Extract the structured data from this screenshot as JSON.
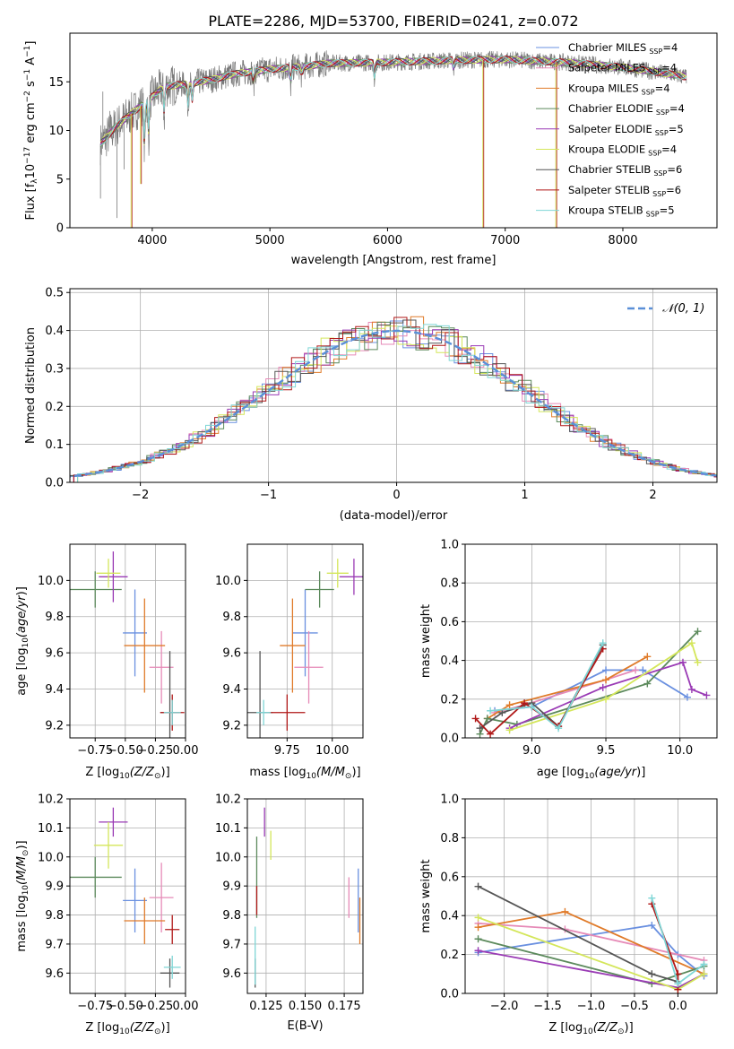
{
  "colors": {
    "Chabrier MILES": "#6a90e0",
    "Salpeter MILES": "#e68ab7",
    "Kroupa MILES": "#e07b2a",
    "Chabrier ELODIE": "#5c8a5c",
    "Salpeter ELODIE": "#9a3bb5",
    "Kroupa ELODIE": "#d4e65a",
    "Chabrier STELIB": "#555555",
    "Salpeter STELIB": "#b01818",
    "Kroupa STELIB": "#7fd6d6",
    "gauss": "#5a8fd8"
  },
  "chart_data": [
    {
      "id": "spectrum",
      "type": "line",
      "title": "PLATE=2286, MJD=53700, FIBERID=0241, z=0.072",
      "xlabel": "wavelength [Angstrom, rest frame]",
      "ylabel_main": "Flux [f",
      "ylabel_sub": "λ",
      "ylabel_rest": "10",
      "ylabel_exp": "−17",
      "ylabel_tail": " erg cm",
      "ylabel_exp2": "−2",
      "ylabel_tail2": " s",
      "ylabel_exp3": "−1",
      "ylabel_tail3": " A",
      "ylabel_exp4": "−1",
      "ylabel_end": "]",
      "xlim": [
        3300,
        8800
      ],
      "ylim": [
        0,
        20
      ],
      "xticks": [
        "4000",
        "5000",
        "6000",
        "7000",
        "8000"
      ],
      "yticks": [
        "0",
        "5",
        "10",
        "15"
      ],
      "legend": [
        {
          "name": "Chabrier MILES",
          "n": "4"
        },
        {
          "name": "Salpeter MILES",
          "n": "4"
        },
        {
          "name": "Kroupa MILES",
          "n": "4"
        },
        {
          "name": "Chabrier ELODIE",
          "n": "4"
        },
        {
          "name": "Salpeter ELODIE",
          "n": "5"
        },
        {
          "name": "Kroupa ELODIE",
          "n": "4"
        },
        {
          "name": "Chabrier STELIB",
          "n": "6"
        },
        {
          "name": "Salpeter STELIB",
          "n": "6"
        },
        {
          "name": "Kroupa STELIB",
          "n": "5"
        }
      ],
      "legend_sub": "SSP",
      "continuum": [
        [
          3550,
          8.5
        ],
        [
          3700,
          10.5
        ],
        [
          3800,
          11.5
        ],
        [
          3900,
          12.5
        ],
        [
          4000,
          13.5
        ],
        [
          4100,
          14.5
        ],
        [
          4300,
          14.8
        ],
        [
          4500,
          15.2
        ],
        [
          4700,
          15.8
        ],
        [
          5000,
          16.3
        ],
        [
          5300,
          16.6
        ],
        [
          5500,
          16.9
        ],
        [
          6000,
          17.0
        ],
        [
          6500,
          17.2
        ],
        [
          7000,
          17.3
        ],
        [
          7500,
          17.0
        ],
        [
          8000,
          16.5
        ],
        [
          8400,
          15.8
        ],
        [
          8550,
          15.5
        ]
      ],
      "absorptions": [
        [
          3934,
          5.0
        ],
        [
          3969,
          4.0
        ],
        [
          4102,
          3.0
        ],
        [
          4304,
          2.5
        ],
        [
          4340,
          2.0
        ],
        [
          4861,
          1.5
        ],
        [
          5175,
          2.0
        ],
        [
          5270,
          1.0
        ],
        [
          5890,
          1.8
        ],
        [
          6563,
          1.0
        ]
      ],
      "dropouts": [
        [
          3820,
          0
        ],
        [
          3900,
          4.5
        ],
        [
          6810,
          0
        ],
        [
          7430,
          0
        ]
      ]
    },
    {
      "id": "residuals",
      "type": "step",
      "xlabel": "(data-model)/error",
      "ylabel": "Normed distribution",
      "xlim": [
        -2.55,
        2.5
      ],
      "ylim": [
        0,
        0.51
      ],
      "xticks": [
        "−2",
        "−1",
        "0",
        "1",
        "2"
      ],
      "yticks": [
        "0.0",
        "0.1",
        "0.2",
        "0.3",
        "0.4",
        "0.5"
      ],
      "bin_width": 0.1,
      "gauss_label": "𝒩(0, 1)"
    },
    {
      "id": "age_vs_Z",
      "type": "errorbar",
      "xlabel": "Z [log",
      "xlabel_sub": "10",
      "xlabel_rest": "(Z/Z",
      "xlabel_sun": "⊙",
      "xlabel_end": ")]",
      "ylabel": "age  [log10(age/yr)]",
      "xlim": [
        -0.96,
        0.0
      ],
      "ylim": [
        9.13,
        10.2
      ],
      "xticks": [
        "−0.75",
        "−0.50",
        "−0.25",
        "0.00"
      ],
      "yticks": [
        "9.2",
        "9.4",
        "9.6",
        "9.8",
        "10.0"
      ],
      "points": [
        {
          "s": "Chabrier MILES",
          "x": -0.42,
          "y": 9.71,
          "xe": 0.1,
          "ye": 0.24
        },
        {
          "s": "Salpeter MILES",
          "x": -0.2,
          "y": 9.52,
          "xe": 0.1,
          "ye": 0.2
        },
        {
          "s": "Kroupa MILES",
          "x": -0.34,
          "y": 9.64,
          "xe": 0.17,
          "ye": 0.26
        },
        {
          "s": "Chabrier ELODIE",
          "x": -0.75,
          "y": 9.95,
          "xe": 0.22,
          "ye": 0.1
        },
        {
          "s": "Salpeter ELODIE",
          "x": -0.6,
          "y": 10.02,
          "xe": 0.12,
          "ye": 0.14
        },
        {
          "s": "Kroupa ELODIE",
          "x": -0.64,
          "y": 10.04,
          "xe": 0.1,
          "ye": 0.08
        },
        {
          "s": "Chabrier STELIB",
          "x": -0.13,
          "y": 9.27,
          "xe": 0.08,
          "ye": 0.34
        },
        {
          "s": "Salpeter STELIB",
          "x": -0.11,
          "y": 9.27,
          "xe": 0.1,
          "ye": 0.1
        },
        {
          "s": "Kroupa STELIB",
          "x": -0.11,
          "y": 9.27,
          "xe": 0.07,
          "ye": 0.07
        }
      ]
    },
    {
      "id": "age_vs_mass",
      "type": "errorbar",
      "xlabel": "mass [log",
      "xlabel_sub": "10",
      "xlabel_rest": "(M/M",
      "xlabel_sun": "⊙",
      "xlabel_end": ")]",
      "xlim": [
        9.53,
        10.17
      ],
      "ylim": [
        9.13,
        10.2
      ],
      "xticks": [
        "9.75",
        "10.00"
      ],
      "yticks": [
        "9.2",
        "9.4",
        "9.6",
        "9.8",
        "10.0"
      ],
      "points": [
        {
          "s": "Chabrier MILES",
          "x": 9.85,
          "y": 9.71,
          "xe": 0.07,
          "ye": 0.24
        },
        {
          "s": "Salpeter MILES",
          "x": 9.87,
          "y": 9.52,
          "xe": 0.08,
          "ye": 0.2
        },
        {
          "s": "Kroupa MILES",
          "x": 9.78,
          "y": 9.64,
          "xe": 0.07,
          "ye": 0.26
        },
        {
          "s": "Chabrier ELODIE",
          "x": 9.93,
          "y": 9.95,
          "xe": 0.08,
          "ye": 0.1
        },
        {
          "s": "Salpeter ELODIE",
          "x": 10.12,
          "y": 10.02,
          "xe": 0.08,
          "ye": 0.1
        },
        {
          "s": "Kroupa ELODIE",
          "x": 10.03,
          "y": 10.04,
          "xe": 0.06,
          "ye": 0.08
        },
        {
          "s": "Chabrier STELIB",
          "x": 9.6,
          "y": 9.27,
          "xe": 0.07,
          "ye": 0.34
        },
        {
          "s": "Salpeter STELIB",
          "x": 9.75,
          "y": 9.27,
          "xe": 0.1,
          "ye": 0.1
        },
        {
          "s": "Kroupa STELIB",
          "x": 9.62,
          "y": 9.27,
          "xe": 0.04,
          "ye": 0.07
        }
      ]
    },
    {
      "id": "mass_vs_Z",
      "type": "errorbar",
      "xlabel": "Z [log",
      "xlabel_sub": "10",
      "xlabel_rest": "(Z/Z",
      "xlabel_sun": "⊙",
      "xlabel_end": ")]",
      "xlim": [
        -0.96,
        0.0
      ],
      "ylim": [
        9.53,
        10.2
      ],
      "xticks": [
        "−0.75",
        "−0.50",
        "−0.25",
        "0.00"
      ],
      "yticks": [
        "9.6",
        "9.7",
        "9.8",
        "9.9",
        "10.0",
        "10.1",
        "10.2"
      ],
      "points": [
        {
          "s": "Chabrier MILES",
          "x": -0.42,
          "y": 9.85,
          "xe": 0.1,
          "ye": 0.11
        },
        {
          "s": "Salpeter MILES",
          "x": -0.2,
          "y": 9.86,
          "xe": 0.1,
          "ye": 0.12
        },
        {
          "s": "Kroupa MILES",
          "x": -0.34,
          "y": 9.78,
          "xe": 0.17,
          "ye": 0.08
        },
        {
          "s": "Chabrier ELODIE",
          "x": -0.75,
          "y": 9.93,
          "xe": 0.22,
          "ye": 0.07
        },
        {
          "s": "Salpeter ELODIE",
          "x": -0.6,
          "y": 10.12,
          "xe": 0.12,
          "ye": 0.05
        },
        {
          "s": "Kroupa ELODIE",
          "x": -0.64,
          "y": 10.04,
          "xe": 0.12,
          "ye": 0.08
        },
        {
          "s": "Chabrier STELIB",
          "x": -0.13,
          "y": 9.6,
          "xe": 0.08,
          "ye": 0.05
        },
        {
          "s": "Salpeter STELIB",
          "x": -0.11,
          "y": 9.75,
          "xe": 0.06,
          "ye": 0.05
        },
        {
          "s": "Kroupa STELIB",
          "x": -0.11,
          "y": 9.62,
          "xe": 0.07,
          "ye": 0.04
        }
      ]
    },
    {
      "id": "mass_vs_ebv",
      "type": "errorbar",
      "xlabel": "E(B-V)",
      "xlim": [
        0.113,
        0.187
      ],
      "ylim": [
        9.53,
        10.2
      ],
      "xticks": [
        "0.125",
        "0.150",
        "0.175"
      ],
      "yticks": [
        "9.6",
        "9.7",
        "9.8",
        "9.9",
        "10.0",
        "10.1",
        "10.2"
      ],
      "points": [
        {
          "s": "Chabrier MILES",
          "x": 0.184,
          "y": 9.85,
          "xe": 0,
          "ye": 0.11
        },
        {
          "s": "Salpeter MILES",
          "x": 0.178,
          "y": 9.86,
          "xe": 0,
          "ye": 0.07
        },
        {
          "s": "Kroupa MILES",
          "x": 0.185,
          "y": 9.78,
          "xe": 0,
          "ye": 0.08
        },
        {
          "s": "Chabrier ELODIE",
          "x": 0.119,
          "y": 9.93,
          "xe": 0,
          "ye": 0.14
        },
        {
          "s": "Salpeter ELODIE",
          "x": 0.124,
          "y": 10.12,
          "xe": 0,
          "ye": 0.05
        },
        {
          "s": "Kroupa ELODIE",
          "x": 0.128,
          "y": 10.04,
          "xe": 0,
          "ye": 0.05
        },
        {
          "s": "Chabrier STELIB",
          "x": 0.118,
          "y": 9.6,
          "xe": 0,
          "ye": 0.05
        },
        {
          "s": "Salpeter STELIB",
          "x": 0.119,
          "y": 9.85,
          "xe": 0,
          "ye": 0.05
        },
        {
          "s": "Kroupa STELIB",
          "x": 0.118,
          "y": 9.66,
          "xe": 0,
          "ye": 0.1
        }
      ]
    },
    {
      "id": "weight_vs_age",
      "type": "line",
      "xlabel": "age  [log10(age/yr)]",
      "ylabel": "mass weight",
      "xlim": [
        8.55,
        10.25
      ],
      "ylim": [
        0,
        1.0
      ],
      "xticks": [
        "9.0",
        "9.5",
        "10.0"
      ],
      "yticks": [
        "0.0",
        "0.2",
        "0.4",
        "0.6",
        "0.8",
        "1.0"
      ],
      "series": [
        {
          "s": "Chabrier MILES",
          "x": [
            8.75,
            9.0,
            9.5,
            9.75,
            10.05
          ],
          "y": [
            0.14,
            0.16,
            0.35,
            0.35,
            0.21
          ]
        },
        {
          "s": "Salpeter MILES",
          "x": [
            8.75,
            8.95,
            9.5,
            9.7
          ],
          "y": [
            0.13,
            0.17,
            0.3,
            0.35
          ]
        },
        {
          "s": "Kroupa MILES",
          "x": [
            8.7,
            8.85,
            9.5,
            9.78
          ],
          "y": [
            0.1,
            0.17,
            0.3,
            0.42
          ]
        },
        {
          "s": "Chabrier ELODIE",
          "x": [
            8.65,
            8.7,
            8.9,
            9.78,
            10.12
          ],
          "y": [
            0.02,
            0.1,
            0.07,
            0.28,
            0.55
          ]
        },
        {
          "s": "Salpeter ELODIE",
          "x": [
            8.85,
            9.48,
            10.02,
            10.08,
            10.18
          ],
          "y": [
            0.05,
            0.26,
            0.39,
            0.25,
            0.22
          ]
        },
        {
          "s": "Kroupa ELODIE",
          "x": [
            8.85,
            9.5,
            10.08,
            10.12
          ],
          "y": [
            0.04,
            0.2,
            0.49,
            0.39
          ]
        },
        {
          "s": "Chabrier STELIB",
          "x": [
            8.65,
            8.8,
            9.0,
            9.18,
            9.48
          ],
          "y": [
            0.05,
            0.13,
            0.18,
            0.06,
            0.48
          ]
        },
        {
          "s": "Salpeter STELIB",
          "x": [
            8.62,
            8.72,
            8.95,
            9.18,
            9.48
          ],
          "y": [
            0.1,
            0.02,
            0.18,
            0.06,
            0.46
          ]
        },
        {
          "s": "Kroupa STELIB",
          "x": [
            8.72,
            9.0,
            9.18,
            9.48
          ],
          "y": [
            0.14,
            0.16,
            0.05,
            0.49
          ]
        }
      ]
    },
    {
      "id": "weight_vs_Z",
      "type": "line",
      "xlabel": "Z [log",
      "xlabel_sub": "10",
      "xlabel_rest": "(Z/Z",
      "xlabel_sun": "⊙",
      "xlabel_end": ")]",
      "ylabel": "mass weight",
      "xlim": [
        -2.45,
        0.45
      ],
      "ylim": [
        0,
        1.0
      ],
      "xticks": [
        "−2.0",
        "−1.5",
        "−1.0",
        "−0.5",
        "0.0"
      ],
      "yticks": [
        "0.0",
        "0.2",
        "0.4",
        "0.6",
        "0.8",
        "1.0"
      ],
      "series": [
        {
          "s": "Chabrier MILES",
          "x": [
            -2.3,
            -0.3,
            0.0,
            0.3
          ],
          "y": [
            0.21,
            0.35,
            0.2,
            0.09
          ]
        },
        {
          "s": "Salpeter MILES",
          "x": [
            -2.3,
            -1.3,
            0.3
          ],
          "y": [
            0.36,
            0.33,
            0.17
          ]
        },
        {
          "s": "Kroupa MILES",
          "x": [
            -2.3,
            -1.3,
            0.3
          ],
          "y": [
            0.34,
            0.42,
            0.1
          ]
        },
        {
          "s": "Chabrier ELODIE",
          "x": [
            -2.3,
            -0.3,
            0.3
          ],
          "y": [
            0.28,
            0.05,
            0.14
          ]
        },
        {
          "s": "Salpeter ELODIE",
          "x": [
            -2.3,
            0.0,
            0.3
          ],
          "y": [
            0.22,
            0.03,
            0.1
          ]
        },
        {
          "s": "Kroupa ELODIE",
          "x": [
            -2.3,
            0.0,
            0.3
          ],
          "y": [
            0.39,
            0.02,
            0.1
          ]
        },
        {
          "s": "Chabrier STELIB",
          "x": [
            -2.3,
            -0.3,
            0.0
          ],
          "y": [
            0.55,
            0.1,
            0.06
          ]
        },
        {
          "s": "Salpeter STELIB",
          "x": [
            -0.3,
            0.0,
            0.0
          ],
          "y": [
            0.46,
            0.1,
            0.02
          ]
        },
        {
          "s": "Kroupa STELIB",
          "x": [
            -0.3,
            0.0,
            0.3
          ],
          "y": [
            0.49,
            0.05,
            0.15
          ]
        }
      ]
    }
  ]
}
